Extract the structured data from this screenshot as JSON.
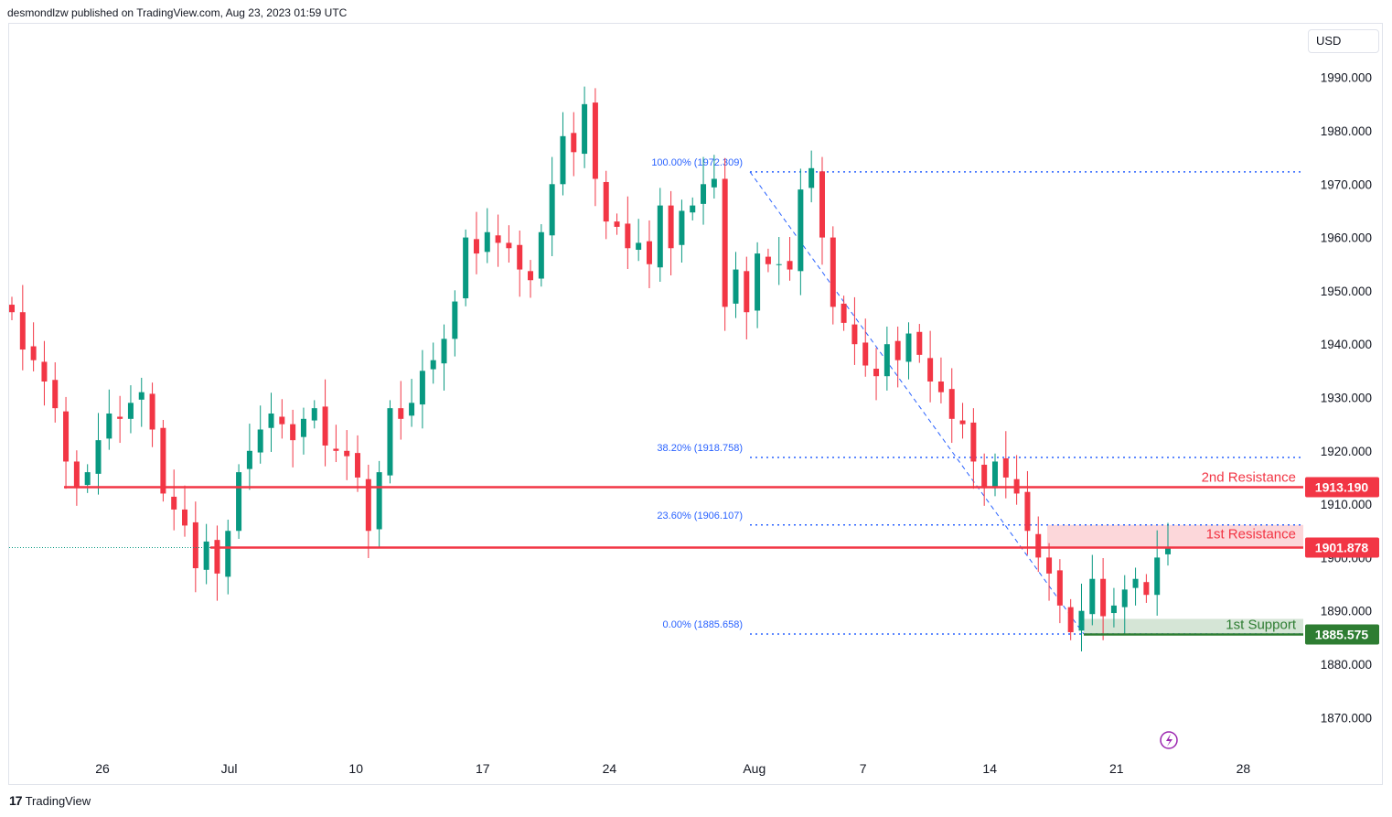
{
  "header": {
    "publisher_line": "desmondlzw published on TradingView.com, Aug 23, 2023 01:59 UTC"
  },
  "currency_button": "USD",
  "footer": {
    "logo_mark": "17",
    "logo_text": "TradingView"
  },
  "colors": {
    "up": "#089981",
    "down": "#f23645",
    "resistance": "#f23645",
    "support": "#2e7d32",
    "fib": "#2962ff"
  },
  "chart_data": {
    "type": "candlestick",
    "symbol_currency": "USD",
    "ylim": [
      1860,
      1995
    ],
    "y_ticks": [
      1870,
      1880,
      1890,
      1900,
      1910,
      1920,
      1930,
      1940,
      1950,
      1960,
      1970,
      1980,
      1990
    ],
    "y_tick_labels": [
      "1870.000",
      "1880.000",
      "1890.000",
      "1900.000",
      "1910.000",
      "1920.000",
      "1930.000",
      "1940.000",
      "1950.000",
      "1960.000",
      "1970.000",
      "1980.000",
      "1990.000"
    ],
    "x_tick_labels": [
      {
        "label": "26",
        "date": "2023-06-26"
      },
      {
        "label": "Jul",
        "date": "2023-07-03"
      },
      {
        "label": "10",
        "date": "2023-07-10"
      },
      {
        "label": "17",
        "date": "2023-07-17"
      },
      {
        "label": "24",
        "date": "2023-07-24"
      },
      {
        "label": "Aug",
        "date": "2023-08-01"
      },
      {
        "label": "7",
        "date": "2023-08-07"
      },
      {
        "label": "14",
        "date": "2023-08-14"
      },
      {
        "label": "21",
        "date": "2023-08-21"
      },
      {
        "label": "28",
        "date": "2023-08-28"
      }
    ],
    "levels": [
      {
        "name": "2nd Resistance",
        "value": 1913.19,
        "label": "1913.190",
        "color": "#f23645"
      },
      {
        "name": "1st Resistance",
        "value": 1901.878,
        "label": "1901.878",
        "color": "#f23645"
      },
      {
        "name": "1st Support",
        "value": 1885.575,
        "label": "1885.575",
        "color": "#2e7d32"
      }
    ],
    "zones": [
      {
        "name": "1st Resistance",
        "from": 1901.878,
        "to": 1906.107,
        "color": "#f23645"
      },
      {
        "name": "1st Support",
        "from": 1885.575,
        "to": 1888.5,
        "color": "#2e7d32"
      }
    ],
    "fibonacci": [
      {
        "ratio": "100.00%",
        "value": 1972.309,
        "label": "100.00% (1972.309)"
      },
      {
        "ratio": "38.20%",
        "value": 1918.758,
        "label": "38.20% (1918.758)"
      },
      {
        "ratio": "23.60%",
        "value": 1906.107,
        "label": "23.60% (1906.107)"
      },
      {
        "ratio": "0.00%",
        "value": 1885.658,
        "label": "0.00% (1885.658)"
      }
    ],
    "closes": [
      1946,
      1939,
      1937,
      1933,
      1928,
      1918,
      1913,
      1916,
      1922,
      1927,
      1926,
      1929,
      1931,
      1924,
      1912,
      1909,
      1906,
      1898,
      1903,
      1897,
      1905,
      1916,
      1920,
      1924,
      1927,
      1925,
      1922,
      1926,
      1928,
      1921,
      1920,
      1919,
      1915,
      1905,
      1916,
      1928,
      1926,
      1929,
      1935,
      1937,
      1941,
      1948,
      1960,
      1957,
      1961,
      1959,
      1958,
      1954,
      1952,
      1961,
      1970,
      1979,
      1976,
      1985,
      1971,
      1963,
      1962,
      1958,
      1959,
      1955,
      1966,
      1958,
      1965,
      1966,
      1970,
      1971,
      1947,
      1954,
      1946,
      1957,
      1955,
      1955,
      1954,
      1969,
      1973,
      1960,
      1947,
      1944,
      1940,
      1936,
      1934,
      1940,
      1937,
      1942,
      1938,
      1933,
      1931,
      1926,
      1925,
      1918,
      1913,
      1918,
      1915,
      1912,
      1905,
      1900,
      1897,
      1891,
      1886,
      1890,
      1896,
      1889,
      1891,
      1894,
      1896,
      1893,
      1900,
      1902
    ]
  }
}
